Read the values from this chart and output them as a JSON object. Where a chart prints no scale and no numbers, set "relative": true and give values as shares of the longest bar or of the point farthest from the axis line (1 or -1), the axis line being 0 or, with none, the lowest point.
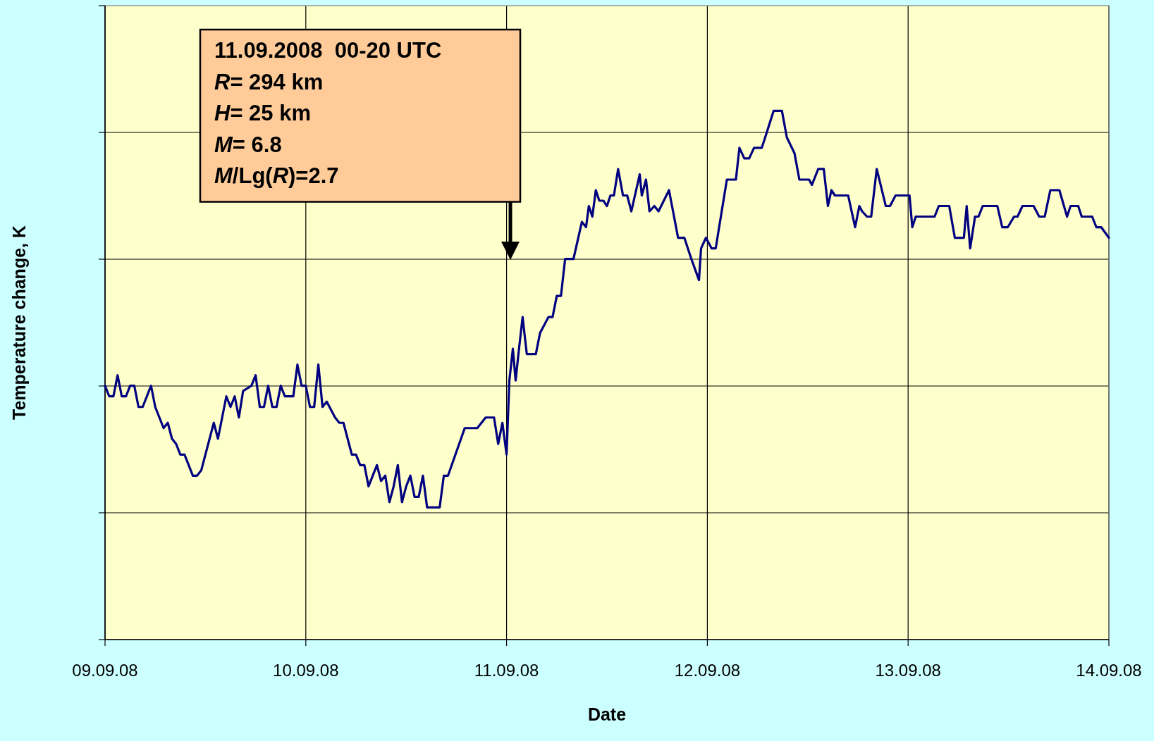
{
  "chart_data": {
    "type": "line",
    "xlabel": "Date",
    "ylabel": "Temperature change, K",
    "relative": true,
    "grid": true,
    "marker": "none",
    "line_style": "solid",
    "xlim": [
      "2008-09-09T00:00",
      "2008-09-14T00:00"
    ],
    "xticks": [
      {
        "value": "2008-09-09",
        "label": "09.09.08"
      },
      {
        "value": "2008-09-10",
        "label": "10.09.08"
      },
      {
        "value": "2008-09-11",
        "label": "11.09.08"
      },
      {
        "value": "2008-09-12",
        "label": "12.09.08"
      },
      {
        "value": "2008-09-13",
        "label": "13.09.08"
      },
      {
        "value": "2008-09-14",
        "label": "14.09.08"
      }
    ],
    "annotations": [
      "11.09.2008  00-20 UTC",
      "R= 294 km",
      "H= 25 km",
      "M= 6.8",
      "M/Lg(R)=2.7"
    ],
    "series": [
      {
        "color": "#000080",
        "x": [
          "2008-09-09T00:00",
          "2008-09-09T00:30",
          "2008-09-09T01:00",
          "2008-09-09T01:30",
          "2008-09-09T02:00",
          "2008-09-09T02:30",
          "2008-09-09T03:00",
          "2008-09-09T03:30",
          "2008-09-09T04:00",
          "2008-09-09T04:30",
          "2008-09-09T05:30",
          "2008-09-09T06:00",
          "2008-09-09T06:30",
          "2008-09-09T07:00",
          "2008-09-09T07:30",
          "2008-09-09T08:00",
          "2008-09-09T08:30",
          "2008-09-09T09:00",
          "2008-09-09T09:30",
          "2008-09-09T10:30",
          "2008-09-09T11:00",
          "2008-09-09T11:30",
          "2008-09-09T13:00",
          "2008-09-09T13:30",
          "2008-09-09T14:30",
          "2008-09-09T15:00",
          "2008-09-09T15:30",
          "2008-09-09T16:00",
          "2008-09-09T16:30",
          "2008-09-09T17:30",
          "2008-09-09T18:00",
          "2008-09-09T18:30",
          "2008-09-09T19:00",
          "2008-09-09T19:30",
          "2008-09-09T20:00",
          "2008-09-09T20:30",
          "2008-09-09T21:00",
          "2008-09-09T21:30",
          "2008-09-09T22:30",
          "2008-09-09T23:00",
          "2008-09-09T23:30",
          "2008-09-10T00:00",
          "2008-09-10T00:30",
          "2008-09-10T01:00",
          "2008-09-10T01:30",
          "2008-09-10T02:00",
          "2008-09-10T02:30",
          "2008-09-10T03:30",
          "2008-09-10T04:00",
          "2008-09-10T04:30",
          "2008-09-10T05:30",
          "2008-09-10T06:00",
          "2008-09-10T06:30",
          "2008-09-10T07:00",
          "2008-09-10T07:30",
          "2008-09-10T08:30",
          "2008-09-10T09:00",
          "2008-09-10T09:30",
          "2008-09-10T10:00",
          "2008-09-10T10:30",
          "2008-09-10T11:00",
          "2008-09-10T11:30",
          "2008-09-10T12:00",
          "2008-09-10T12:30",
          "2008-09-10T13:00",
          "2008-09-10T13:30",
          "2008-09-10T14:00",
          "2008-09-10T14:30",
          "2008-09-10T16:00",
          "2008-09-10T16:30",
          "2008-09-10T17:00",
          "2008-09-10T19:00",
          "2008-09-10T20:30",
          "2008-09-10T21:30",
          "2008-09-10T22:30",
          "2008-09-10T23:00",
          "2008-09-10T23:30",
          "2008-09-11T00:00",
          "2008-09-11T00:20",
          "2008-09-11T00:45",
          "2008-09-11T01:05",
          "2008-09-11T01:25",
          "2008-09-11T01:55",
          "2008-09-11T02:25",
          "2008-09-11T03:30",
          "2008-09-11T04:00",
          "2008-09-11T05:00",
          "2008-09-11T05:30",
          "2008-09-11T06:00",
          "2008-09-11T06:30",
          "2008-09-11T07:00",
          "2008-09-11T08:00",
          "2008-09-11T09:00",
          "2008-09-11T09:30",
          "2008-09-11T09:50",
          "2008-09-11T10:15",
          "2008-09-11T10:40",
          "2008-09-11T11:05",
          "2008-09-11T11:35",
          "2008-09-11T12:00",
          "2008-09-11T12:25",
          "2008-09-11T12:50",
          "2008-09-11T13:20",
          "2008-09-11T13:55",
          "2008-09-11T14:25",
          "2008-09-11T14:55",
          "2008-09-11T15:55",
          "2008-09-11T16:10",
          "2008-09-11T16:40",
          "2008-09-11T17:05",
          "2008-09-11T17:40",
          "2008-09-11T18:10",
          "2008-09-11T19:25",
          "2008-09-11T20:30",
          "2008-09-11T21:15",
          "2008-09-11T22:05",
          "2008-09-11T23:00",
          "2008-09-11T23:15",
          "2008-09-11T23:50",
          "2008-09-12T00:30",
          "2008-09-12T01:00",
          "2008-09-12T02:20",
          "2008-09-12T03:25",
          "2008-09-12T03:50",
          "2008-09-12T04:25",
          "2008-09-12T05:00",
          "2008-09-12T05:35",
          "2008-09-12T06:30",
          "2008-09-12T06:55",
          "2008-09-12T07:55",
          "2008-09-12T08:55",
          "2008-09-12T09:30",
          "2008-09-12T10:25",
          "2008-09-12T11:00",
          "2008-09-12T12:10",
          "2008-09-12T12:30",
          "2008-09-12T13:15",
          "2008-09-12T13:55",
          "2008-09-12T14:25",
          "2008-09-12T14:50",
          "2008-09-12T15:15",
          "2008-09-12T16:50",
          "2008-09-12T17:40",
          "2008-09-12T18:10",
          "2008-09-12T18:30",
          "2008-09-12T19:05",
          "2008-09-12T19:35",
          "2008-09-12T20:15",
          "2008-09-12T21:20",
          "2008-09-12T21:50",
          "2008-09-12T22:30",
          "2008-09-13T00:10",
          "2008-09-13T00:30",
          "2008-09-13T00:55",
          "2008-09-13T03:10",
          "2008-09-13T03:40",
          "2008-09-13T04:55",
          "2008-09-13T05:35",
          "2008-09-13T06:40",
          "2008-09-13T07:00",
          "2008-09-13T07:25",
          "2008-09-13T08:00",
          "2008-09-13T08:25",
          "2008-09-13T08:55",
          "2008-09-13T10:40",
          "2008-09-13T11:15",
          "2008-09-13T11:55",
          "2008-09-13T12:40",
          "2008-09-13T13:05",
          "2008-09-13T13:40",
          "2008-09-13T15:00",
          "2008-09-13T15:40",
          "2008-09-13T16:20",
          "2008-09-13T17:00",
          "2008-09-13T18:05",
          "2008-09-13T19:00",
          "2008-09-13T19:25",
          "2008-09-13T20:20",
          "2008-09-13T20:45",
          "2008-09-13T22:00",
          "2008-09-13T22:30",
          "2008-09-13T23:05",
          "2008-09-14T00:00"
        ],
        "values": [
          0.48,
          0.46,
          0.46,
          0.5,
          0.46,
          0.46,
          0.48,
          0.48,
          0.44,
          0.44,
          0.48,
          0.44,
          0.42,
          0.4,
          0.41,
          0.38,
          0.37,
          0.35,
          0.35,
          0.31,
          0.31,
          0.32,
          0.41,
          0.38,
          0.46,
          0.44,
          0.46,
          0.42,
          0.47,
          0.48,
          0.5,
          0.44,
          0.44,
          0.48,
          0.44,
          0.44,
          0.48,
          0.46,
          0.46,
          0.52,
          0.48,
          0.48,
          0.44,
          0.44,
          0.52,
          0.44,
          0.45,
          0.42,
          0.41,
          0.41,
          0.35,
          0.35,
          0.33,
          0.33,
          0.29,
          0.33,
          0.3,
          0.31,
          0.26,
          0.29,
          0.33,
          0.26,
          0.29,
          0.31,
          0.27,
          0.27,
          0.31,
          0.25,
          0.25,
          0.31,
          0.31,
          0.4,
          0.4,
          0.42,
          0.42,
          0.37,
          0.41,
          0.35,
          0.49,
          0.55,
          0.49,
          0.54,
          0.61,
          0.54,
          0.54,
          0.58,
          0.61,
          0.61,
          0.65,
          0.65,
          0.72,
          0.72,
          0.79,
          0.78,
          0.82,
          0.8,
          0.85,
          0.83,
          0.83,
          0.82,
          0.84,
          0.84,
          0.89,
          0.84,
          0.84,
          0.81,
          0.88,
          0.84,
          0.87,
          0.81,
          0.82,
          0.81,
          0.85,
          0.76,
          0.76,
          0.72,
          0.68,
          0.74,
          0.76,
          0.74,
          0.74,
          0.87,
          0.87,
          0.93,
          0.91,
          0.91,
          0.93,
          0.93,
          0.95,
          1.0,
          1.0,
          0.95,
          0.92,
          0.87,
          0.87,
          0.86,
          0.89,
          0.89,
          0.82,
          0.85,
          0.84,
          0.84,
          0.78,
          0.82,
          0.81,
          0.8,
          0.8,
          0.89,
          0.82,
          0.82,
          0.84,
          0.84,
          0.78,
          0.8,
          0.8,
          0.82,
          0.82,
          0.76,
          0.76,
          0.82,
          0.74,
          0.8,
          0.8,
          0.82,
          0.82,
          0.78,
          0.78,
          0.8,
          0.8,
          0.82,
          0.82,
          0.8,
          0.8,
          0.85,
          0.85,
          0.8,
          0.82,
          0.82,
          0.8,
          0.8,
          0.78,
          0.78,
          0.76
        ]
      }
    ]
  }
}
